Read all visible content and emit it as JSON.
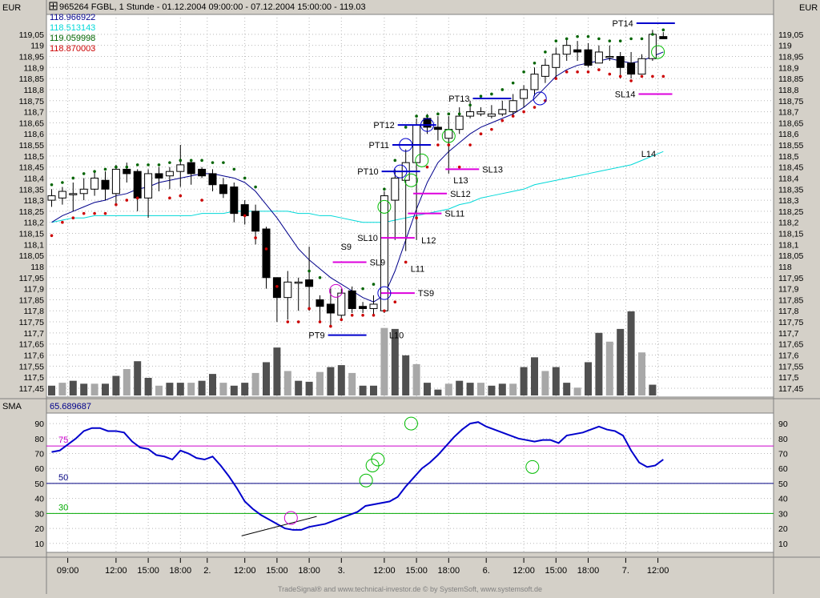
{
  "header": {
    "symbol_line": "965264  FGBL, 1 Stunde - 01.12.2004 09:00:00 - 07.12.2004 15:00:00 - 119.03",
    "currency_left": "EUR",
    "currency_right": "EUR",
    "readouts": [
      {
        "text": "118.966922",
        "color": "#00008b"
      },
      {
        "text": "118.513143",
        "color": "#00d8d8"
      },
      {
        "text": "119.059998",
        "color": "#006400"
      },
      {
        "text": "118.870003",
        "color": "#cc0000"
      }
    ]
  },
  "indicator": {
    "label": "SMA",
    "value": "65.689687",
    "levels": [
      {
        "value": 75,
        "label": "75",
        "color": "#cc00cc"
      },
      {
        "value": 50,
        "label": "50",
        "color": "#000080"
      },
      {
        "value": 30,
        "label": "30",
        "color": "#00aa00"
      }
    ],
    "ticks": [
      "10",
      "20",
      "30",
      "40",
      "50",
      "60",
      "70",
      "80",
      "90"
    ]
  },
  "footer": "TradeSignal® and www.technical-investor.de © by SystemSoft, www.systemsoft.de",
  "colors": {
    "panel_bg": "#ffffff",
    "chrome": "#d4d0c8",
    "sma_fast": "#00008b",
    "sma_slow": "#00d8d8",
    "dot_high": "#006400",
    "dot_low": "#cc0000",
    "target_line": "#0000cc",
    "stop_line": "#dd00dd",
    "volume_dark": "#505050",
    "volume_light": "#a8a8a8",
    "indicator_line": "#0000cc",
    "circle_green": "#00bb00",
    "circle_magenta": "#cc00cc"
  },
  "chart_data": [
    {
      "type": "candlestick",
      "price_ticks": [
        "117,45",
        "117,5",
        "117,55",
        "117,6",
        "117,65",
        "117,7",
        "117,75",
        "117,8",
        "117,85",
        "117,9",
        "117,95",
        "118",
        "118,05",
        "118,1",
        "118,15",
        "118,2",
        "118,25",
        "118,3",
        "118,35",
        "118,4",
        "118,45",
        "118,5",
        "118,55",
        "118,6",
        "118,65",
        "118,7",
        "118,75",
        "118,8",
        "118,85",
        "118,9",
        "118,95",
        "119",
        "119,05"
      ],
      "ylim": [
        117.41,
        119.14
      ],
      "x_ticks": [
        "09:00",
        "12:00",
        "15:00",
        "18:00",
        "2.",
        "12:00",
        "15:00",
        "18:00",
        "3.",
        "12:00",
        "15:00",
        "18:00",
        "6.",
        "12:00",
        "15:00",
        "18:00",
        "7.",
        "12:00"
      ],
      "candles": [
        {
          "o": 118.3,
          "h": 118.35,
          "l": 118.27,
          "c": 118.32,
          "v": 1
        },
        {
          "o": 118.31,
          "h": 118.36,
          "l": 118.28,
          "c": 118.34,
          "v": 1.3
        },
        {
          "o": 118.33,
          "h": 118.38,
          "l": 118.25,
          "c": 118.33,
          "v": 1.5
        },
        {
          "o": 118.33,
          "h": 118.4,
          "l": 118.3,
          "c": 118.35,
          "v": 1.2
        },
        {
          "o": 118.35,
          "h": 118.43,
          "l": 118.32,
          "c": 118.4,
          "v": 1.2
        },
        {
          "o": 118.39,
          "h": 118.43,
          "l": 118.3,
          "c": 118.35,
          "v": 1.2
        },
        {
          "o": 118.33,
          "h": 118.46,
          "l": 118.28,
          "c": 118.44,
          "v": 2
        },
        {
          "o": 118.44,
          "h": 118.47,
          "l": 118.38,
          "c": 118.42,
          "v": 2.7
        },
        {
          "o": 118.43,
          "h": 118.44,
          "l": 118.25,
          "c": 118.31,
          "v": 3.5
        },
        {
          "o": 118.31,
          "h": 118.44,
          "l": 118.22,
          "c": 118.42,
          "v": 1.8
        },
        {
          "o": 118.42,
          "h": 118.45,
          "l": 118.34,
          "c": 118.4,
          "v": 1
        },
        {
          "o": 118.41,
          "h": 118.45,
          "l": 118.35,
          "c": 118.43,
          "v": 1.3
        },
        {
          "o": 118.43,
          "h": 118.55,
          "l": 118.36,
          "c": 118.46,
          "v": 1.3
        },
        {
          "o": 118.47,
          "h": 118.48,
          "l": 118.37,
          "c": 118.42,
          "v": 1.3
        },
        {
          "o": 118.44,
          "h": 118.45,
          "l": 118.4,
          "c": 118.41,
          "v": 1.5
        },
        {
          "o": 118.42,
          "h": 118.44,
          "l": 118.34,
          "c": 118.37,
          "v": 2.2
        },
        {
          "o": 118.37,
          "h": 118.4,
          "l": 118.31,
          "c": 118.33,
          "v": 1.3
        },
        {
          "o": 118.36,
          "h": 118.38,
          "l": 118.2,
          "c": 118.24,
          "v": 1
        },
        {
          "o": 118.28,
          "h": 118.3,
          "l": 118.19,
          "c": 118.23,
          "v": 1.3
        },
        {
          "o": 118.25,
          "h": 118.28,
          "l": 118.1,
          "c": 118.16,
          "v": 2.3
        },
        {
          "o": 118.17,
          "h": 118.18,
          "l": 117.9,
          "c": 117.95,
          "v": 3.4
        },
        {
          "o": 117.95,
          "h": 117.95,
          "l": 117.75,
          "c": 117.86,
          "v": 4.9
        },
        {
          "o": 117.86,
          "h": 117.98,
          "l": 117.76,
          "c": 117.93,
          "v": 2.5
        },
        {
          "o": 117.93,
          "h": 117.95,
          "l": 117.8,
          "c": 117.93,
          "v": 1.5
        },
        {
          "o": 117.94,
          "h": 118.09,
          "l": 117.8,
          "c": 117.91,
          "v": 1.4
        },
        {
          "o": 117.85,
          "h": 117.87,
          "l": 117.75,
          "c": 117.82,
          "v": 2.4
        },
        {
          "o": 117.83,
          "h": 117.9,
          "l": 117.73,
          "c": 117.79,
          "v": 2.9
        },
        {
          "o": 117.78,
          "h": 117.9,
          "l": 117.76,
          "c": 117.88,
          "v": 3.1
        },
        {
          "o": 117.89,
          "h": 117.91,
          "l": 117.79,
          "c": 117.81,
          "v": 2.3
        },
        {
          "o": 117.82,
          "h": 117.84,
          "l": 117.79,
          "c": 117.81,
          "v": 1
        },
        {
          "o": 117.81,
          "h": 117.87,
          "l": 117.78,
          "c": 117.83,
          "v": 1
        },
        {
          "o": 117.8,
          "h": 118.34,
          "l": 117.79,
          "c": 118.32,
          "v": 6.9
        },
        {
          "o": 118.3,
          "h": 118.44,
          "l": 118.12,
          "c": 118.4,
          "v": 6.8
        },
        {
          "o": 118.39,
          "h": 118.53,
          "l": 118.07,
          "c": 118.47,
          "v": 4.1
        },
        {
          "o": 118.47,
          "h": 118.67,
          "l": 118.12,
          "c": 118.64,
          "v": 3.2
        },
        {
          "o": 118.67,
          "h": 118.69,
          "l": 118.6,
          "c": 118.63,
          "v": 1.3
        },
        {
          "o": 118.63,
          "h": 118.68,
          "l": 118.57,
          "c": 118.62,
          "v": 0.6
        },
        {
          "o": 118.58,
          "h": 118.68,
          "l": 118.42,
          "c": 118.62,
          "v": 1.2
        },
        {
          "o": 118.62,
          "h": 118.72,
          "l": 118.6,
          "c": 118.68,
          "v": 1.5
        },
        {
          "o": 118.68,
          "h": 118.75,
          "l": 118.67,
          "c": 118.7,
          "v": 1.3
        },
        {
          "o": 118.69,
          "h": 118.72,
          "l": 118.68,
          "c": 118.7,
          "v": 1.3
        },
        {
          "o": 118.68,
          "h": 118.73,
          "l": 118.67,
          "c": 118.69,
          "v": 1
        },
        {
          "o": 118.69,
          "h": 118.75,
          "l": 118.68,
          "c": 118.71,
          "v": 1.2
        },
        {
          "o": 118.7,
          "h": 118.78,
          "l": 118.68,
          "c": 118.75,
          "v": 1.2
        },
        {
          "o": 118.76,
          "h": 118.82,
          "l": 118.72,
          "c": 118.8,
          "v": 2.9
        },
        {
          "o": 118.8,
          "h": 118.9,
          "l": 118.77,
          "c": 118.87,
          "v": 3.9
        },
        {
          "o": 118.86,
          "h": 118.94,
          "l": 118.83,
          "c": 118.91,
          "v": 2.5
        },
        {
          "o": 118.9,
          "h": 118.99,
          "l": 118.85,
          "c": 118.96,
          "v": 2.9
        },
        {
          "o": 118.96,
          "h": 119.03,
          "l": 118.93,
          "c": 119.0,
          "v": 1.3
        },
        {
          "o": 118.98,
          "h": 119.02,
          "l": 118.93,
          "c": 118.97,
          "v": 0.8
        },
        {
          "o": 118.98,
          "h": 119.01,
          "l": 118.9,
          "c": 118.91,
          "v": 3.4
        },
        {
          "o": 118.92,
          "h": 119.0,
          "l": 118.92,
          "c": 118.97,
          "v": 6.4
        },
        {
          "o": 118.95,
          "h": 119.0,
          "l": 118.93,
          "c": 118.95,
          "v": 5.5
        },
        {
          "o": 118.95,
          "h": 118.97,
          "l": 118.85,
          "c": 118.9,
          "v": 6.8
        },
        {
          "o": 118.92,
          "h": 118.97,
          "l": 118.85,
          "c": 118.87,
          "v": 8.6
        },
        {
          "o": 118.87,
          "h": 118.96,
          "l": 118.87,
          "c": 118.94,
          "v": 4.4
        },
        {
          "o": 118.94,
          "h": 119.07,
          "l": 118.93,
          "c": 119.05,
          "v": 1.1
        },
        {
          "o": 119.04,
          "h": 119.06,
          "l": 119.03,
          "c": 119.03,
          "v": 0
        }
      ],
      "series": [
        {
          "name": "118.966922",
          "values": [
            118.2,
            118.23,
            118.25,
            118.27,
            118.29,
            118.3,
            118.32,
            118.33,
            118.35,
            118.36,
            118.38,
            118.39,
            118.4,
            118.41,
            118.42,
            118.42,
            118.41,
            118.4,
            118.38,
            118.34,
            118.28,
            118.22,
            118.15,
            118.08,
            118.03,
            117.99,
            117.95,
            117.92,
            117.89,
            117.86,
            117.84,
            117.87,
            117.98,
            118.12,
            118.26,
            118.38,
            118.47,
            118.52,
            118.56,
            118.6,
            118.63,
            118.65,
            118.67,
            118.69,
            118.72,
            118.76,
            118.81,
            118.86,
            118.89,
            118.91,
            118.92,
            118.93,
            118.94,
            118.93,
            118.92,
            118.93,
            118.95,
            118.97
          ]
        },
        {
          "name": "118.513143",
          "values": [
            118.2,
            118.21,
            118.22,
            118.22,
            118.23,
            118.23,
            118.23,
            118.23,
            118.23,
            118.23,
            118.23,
            118.23,
            118.23,
            118.23,
            118.24,
            118.24,
            118.24,
            118.25,
            118.25,
            118.25,
            118.25,
            118.25,
            118.25,
            118.24,
            118.24,
            118.23,
            118.23,
            118.22,
            118.21,
            118.2,
            118.2,
            118.2,
            118.21,
            118.22,
            118.23,
            118.24,
            118.25,
            118.26,
            118.28,
            118.29,
            118.31,
            118.32,
            118.33,
            118.34,
            118.35,
            118.37,
            118.38,
            118.39,
            118.4,
            118.41,
            118.42,
            118.43,
            118.44,
            118.45,
            118.46,
            118.48,
            118.5,
            118.52
          ]
        }
      ],
      "dots_high": [
        118.37,
        118.38,
        118.4,
        118.42,
        118.43,
        118.44,
        118.45,
        118.45,
        118.46,
        118.46,
        118.46,
        118.47,
        118.48,
        118.48,
        118.48,
        118.47,
        118.47,
        118.44,
        118.4,
        118.36,
        null,
        null,
        null,
        null,
        117.98,
        117.95,
        null,
        null,
        null,
        117.9,
        117.92,
        118.35,
        118.48,
        118.63,
        118.68,
        118.68,
        118.69,
        118.69,
        118.69,
        118.73,
        118.77,
        118.78,
        118.8,
        118.83,
        118.88,
        118.92,
        118.97,
        119.02,
        119.03,
        119.04,
        119.04,
        119.03,
        119.02,
        119.02,
        119.03,
        119.03,
        119.05,
        119.07
      ],
      "dots_low": [
        118.14,
        118.2,
        118.22,
        118.24,
        118.24,
        118.24,
        118.28,
        118.3,
        118.31,
        null,
        null,
        118.31,
        118.32,
        null,
        118.3,
        null,
        null,
        null,
        118.23,
        118.13,
        118.08,
        117.91,
        117.75,
        117.75,
        117.81,
        117.75,
        117.73,
        117.76,
        117.78,
        117.78,
        117.78,
        117.8,
        117.84,
        118.02,
        118.22,
        118.45,
        118.55,
        118.55,
        118.45,
        118.55,
        118.6,
        118.62,
        118.66,
        118.68,
        118.7,
        118.72,
        118.75,
        118.85,
        118.88,
        118.88,
        118.88,
        118.89,
        118.87,
        118.86,
        118.84,
        118.86,
        118.86,
        118.86
      ],
      "annotations": [
        {
          "label": "S9",
          "type": "signal",
          "x": 26.5,
          "y": 118.09
        },
        {
          "label": "SL9",
          "type": "stop",
          "x": 26.5,
          "y": 118.02
        },
        {
          "label": "PT9",
          "type": "target",
          "x": 26.5,
          "y": 117.69
        },
        {
          "label": "L10",
          "type": "signal",
          "x": 31,
          "y": 117.69
        },
        {
          "label": "TS9",
          "type": "stop",
          "x": 31,
          "y": 117.88
        },
        {
          "label": "SL10",
          "type": "stop",
          "x": 31,
          "y": 118.13
        },
        {
          "label": "PT10",
          "type": "target",
          "x": 31.5,
          "y": 118.43
        },
        {
          "label": "PT11",
          "type": "target",
          "x": 32.5,
          "y": 118.55
        },
        {
          "label": "L11",
          "type": "signal",
          "x": 33,
          "y": 117.99
        },
        {
          "label": "SL11",
          "type": "stop",
          "x": 33.5,
          "y": 118.24
        },
        {
          "label": "PT12",
          "type": "target",
          "x": 33,
          "y": 118.64
        },
        {
          "label": "SL12",
          "type": "stop",
          "x": 34,
          "y": 118.33
        },
        {
          "label": "L12",
          "type": "signal",
          "x": 34,
          "y": 118.12
        },
        {
          "label": "PT13",
          "type": "target",
          "x": 40,
          "y": 118.76
        },
        {
          "label": "L13",
          "type": "signal",
          "x": 37,
          "y": 118.39
        },
        {
          "label": "SL13",
          "type": "stop",
          "x": 37,
          "y": 118.44
        },
        {
          "label": "PT14",
          "type": "target",
          "x": 54.5,
          "y": 119.1
        },
        {
          "label": "L14",
          "type": "signal",
          "x": 54.5,
          "y": 118.51
        },
        {
          "label": "SL14",
          "type": "stop",
          "x": 55,
          "y": 118.78
        }
      ]
    },
    {
      "type": "line",
      "title": "SMA",
      "ylim": [
        4,
        97
      ],
      "levels": [
        75,
        50,
        30
      ],
      "values": [
        71,
        72,
        76,
        80,
        85,
        87,
        87,
        85,
        85,
        84,
        78,
        74,
        73,
        69,
        68,
        66,
        72,
        70,
        67,
        66,
        68,
        62,
        55,
        47,
        38,
        33,
        29,
        26,
        23,
        20,
        19,
        19,
        21,
        22,
        23,
        25,
        27,
        29,
        31,
        35,
        36,
        37,
        38,
        41,
        48,
        54,
        60,
        64,
        69,
        75,
        81,
        86,
        90,
        91,
        88,
        86,
        84,
        82,
        80,
        79,
        78,
        79,
        79,
        77,
        82,
        83,
        84,
        86,
        88,
        86,
        85,
        82,
        72,
        64,
        61,
        62,
        66
      ],
      "trendline": [
        [
          17.7,
          15
        ],
        [
          24.7,
          28
        ]
      ],
      "circles": [
        {
          "x": 22.3,
          "y": 27,
          "color": "magenta"
        },
        {
          "x": 29.3,
          "y": 52,
          "color": "green"
        },
        {
          "x": 29.9,
          "y": 62,
          "color": "green"
        },
        {
          "x": 30.4,
          "y": 66,
          "color": "green"
        },
        {
          "x": 33.5,
          "y": 90,
          "color": "green"
        },
        {
          "x": 44.8,
          "y": 61,
          "color": "green"
        }
      ]
    }
  ]
}
